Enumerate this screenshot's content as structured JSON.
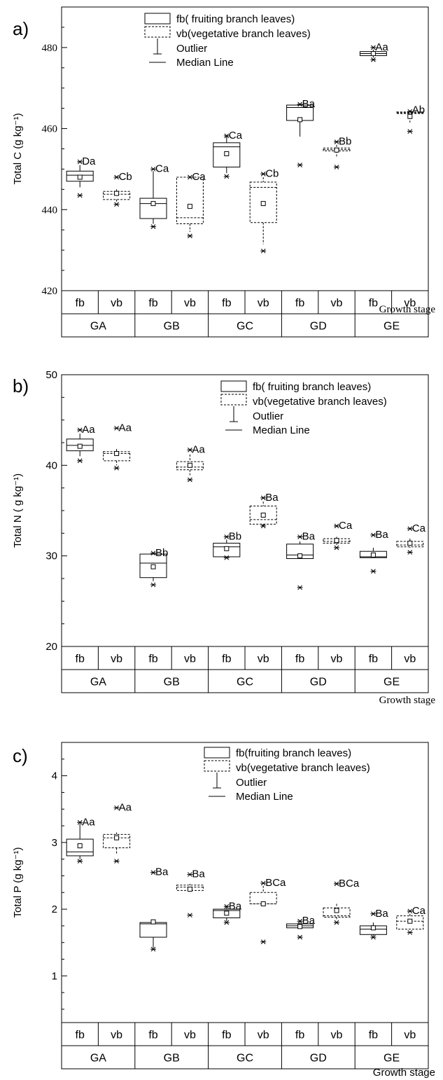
{
  "chart_data": [
    {
      "panel_label": "a)",
      "type": "box",
      "ylabel": "Total C (g kg⁻¹)",
      "ylim": [
        420,
        490
      ],
      "yticks": [
        420,
        440,
        460,
        480
      ],
      "xlabel": "Growth stage",
      "stages": [
        "GA",
        "GB",
        "GC",
        "GD",
        "GE"
      ],
      "leaf_types": [
        "fb",
        "vb"
      ],
      "legend": {
        "fb": "fb( fruiting branch leaves)",
        "vb": "vb(vegetative branch leaves)",
        "outlier": "Outlier",
        "median": "Median Line"
      },
      "boxes": [
        {
          "stage": "GA",
          "type": "fb",
          "whisker_low": 445.5,
          "q1": 447.0,
          "median": 448.5,
          "q3": 449.5,
          "whisker_high": 451.0,
          "mean": 448.0,
          "outliers": [
            443.5,
            451.8
          ],
          "label": "Da"
        },
        {
          "stage": "GA",
          "type": "vb",
          "whisker_low": 442.0,
          "q1": 442.5,
          "median": 443.8,
          "q3": 444.5,
          "whisker_high": 445.0,
          "mean": 444.0,
          "outliers": [
            441.3,
            448.0
          ],
          "label": "Cb"
        },
        {
          "stage": "GB",
          "type": "fb",
          "whisker_low": 436.5,
          "q1": 437.8,
          "median": 441.5,
          "q3": 442.8,
          "whisker_high": 449.5,
          "mean": 441.5,
          "outliers": [
            435.8,
            450.0
          ],
          "label": "Ca"
        },
        {
          "stage": "GB",
          "type": "vb",
          "whisker_low": 434.5,
          "q1": 436.5,
          "median": 438.0,
          "q3": 448.0,
          "whisker_high": 448.0,
          "mean": 440.8,
          "outliers": [
            433.5,
            448.0
          ],
          "label": "Ca"
        },
        {
          "stage": "GC",
          "type": "fb",
          "whisker_low": 449.0,
          "q1": 450.5,
          "median": 455.5,
          "q3": 456.5,
          "whisker_high": 458.0,
          "mean": 453.8,
          "outliers": [
            448.2,
            458.2
          ],
          "label": "Ca"
        },
        {
          "stage": "GC",
          "type": "vb",
          "whisker_low": 431.5,
          "q1": 436.8,
          "median": 445.5,
          "q3": 446.8,
          "whisker_high": 448.0,
          "mean": 441.5,
          "outliers": [
            429.8,
            448.8
          ],
          "label": "Cb"
        },
        {
          "stage": "GD",
          "type": "fb",
          "whisker_low": 458.0,
          "q1": 462.0,
          "median": 465.2,
          "q3": 465.8,
          "whisker_high": 466.0,
          "mean": 462.2,
          "outliers": [
            451.0,
            466.0
          ],
          "label": "Ba"
        },
        {
          "stage": "GD",
          "type": "vb",
          "whisker_low": 453.0,
          "q1": 454.5,
          "median": 454.8,
          "q3": 455.2,
          "whisker_high": 456.0,
          "mean": 454.7,
          "outliers": [
            450.5,
            456.7
          ],
          "label": "Bb"
        },
        {
          "stage": "GE",
          "type": "fb",
          "whisker_low": 477.5,
          "q1": 478.0,
          "median": 478.5,
          "q3": 479.0,
          "whisker_high": 479.5,
          "mean": 478.5,
          "outliers": [
            477.0,
            480.0
          ],
          "label": "Aa"
        },
        {
          "stage": "GE",
          "type": "vb",
          "whisker_low": 461.5,
          "q1": 463.7,
          "median": 463.9,
          "q3": 464.1,
          "whisker_high": 464.5,
          "mean": 463.0,
          "outliers": [
            459.3,
            464.2
          ],
          "label": "Ab"
        }
      ]
    },
    {
      "panel_label": "b)",
      "type": "box",
      "ylabel": "Total N ( g kg⁻¹)",
      "ylim": [
        20,
        50
      ],
      "yticks": [
        20,
        30,
        40,
        50
      ],
      "xlabel": "Growth stage",
      "stages": [
        "GA",
        "GB",
        "GC",
        "GD",
        "GE"
      ],
      "leaf_types": [
        "fb",
        "vb"
      ],
      "legend": {
        "fb": "fb( fruiting branch leaves)",
        "vb": "vb(vegetative branch leaves)",
        "outlier": "Outlier",
        "median": "Median Line"
      },
      "boxes": [
        {
          "stage": "GA",
          "type": "fb",
          "whisker_low": 41.0,
          "q1": 41.6,
          "median": 42.2,
          "q3": 42.9,
          "whisker_high": 43.5,
          "mean": 42.1,
          "outliers": [
            40.5,
            43.9
          ],
          "label": "Aa"
        },
        {
          "stage": "GA",
          "type": "vb",
          "whisker_low": 40.0,
          "q1": 40.5,
          "median": 41.3,
          "q3": 41.5,
          "whisker_high": 41.8,
          "mean": 41.3,
          "outliers": [
            39.7,
            44.1
          ],
          "label": "Aa"
        },
        {
          "stage": "GB",
          "type": "fb",
          "whisker_low": 27.2,
          "q1": 27.6,
          "median": 29.2,
          "q3": 30.2,
          "whisker_high": 30.2,
          "mean": 28.8,
          "outliers": [
            26.8,
            30.3
          ],
          "label": "Bb"
        },
        {
          "stage": "GB",
          "type": "vb",
          "whisker_low": 38.9,
          "q1": 39.5,
          "median": 39.8,
          "q3": 40.4,
          "whisker_high": 41.2,
          "mean": 40.0,
          "outliers": [
            38.4,
            41.7
          ],
          "label": "Aa"
        },
        {
          "stage": "GC",
          "type": "fb",
          "whisker_low": 29.9,
          "q1": 29.9,
          "median": 31.0,
          "q3": 31.4,
          "whisker_high": 31.8,
          "mean": 30.8,
          "outliers": [
            29.8,
            32.1
          ],
          "label": "Bb"
        },
        {
          "stage": "GC",
          "type": "vb",
          "whisker_low": 33.3,
          "q1": 33.5,
          "median": 34.0,
          "q3": 35.5,
          "whisker_high": 36.0,
          "mean": 34.5,
          "outliers": [
            33.3,
            36.4
          ],
          "label": "Ba"
        },
        {
          "stage": "GD",
          "type": "fb",
          "whisker_low": 29.7,
          "q1": 29.7,
          "median": 30.1,
          "q3": 31.3,
          "whisker_high": 31.6,
          "mean": 30.0,
          "outliers": [
            26.5,
            32.1
          ],
          "label": "Ba"
        },
        {
          "stage": "GD",
          "type": "vb",
          "whisker_low": 31.2,
          "q1": 31.4,
          "median": 31.6,
          "q3": 31.9,
          "whisker_high": 32.1,
          "mean": 31.7,
          "outliers": [
            30.9,
            33.3
          ],
          "label": "Ca"
        },
        {
          "stage": "GE",
          "type": "fb",
          "whisker_low": 29.8,
          "q1": 29.8,
          "median": 29.9,
          "q3": 30.5,
          "whisker_high": 30.9,
          "mean": 30.1,
          "outliers": [
            28.3,
            32.3
          ],
          "label": "Ba"
        },
        {
          "stage": "GE",
          "type": "vb",
          "whisker_low": 30.9,
          "q1": 31.0,
          "median": 31.2,
          "q3": 31.6,
          "whisker_high": 31.9,
          "mean": 31.4,
          "outliers": [
            30.4,
            33.0
          ],
          "label": "Ca"
        }
      ]
    },
    {
      "panel_label": "c)",
      "type": "box",
      "ylabel": "Total P (g kg⁻¹)",
      "ylim": [
        0.3,
        4.5
      ],
      "yticks": [
        1,
        2,
        3,
        4
      ],
      "xlabel": "Growth stage",
      "stages": [
        "GA",
        "GB",
        "GC",
        "GD",
        "GE"
      ],
      "leaf_types": [
        "fb",
        "vb"
      ],
      "legend": {
        "fb": "fb(fruiting branch leaves)",
        "vb": "vb(vegetative branch leaves)",
        "outlier": "Outlier",
        "median": "Median Line"
      },
      "boxes": [
        {
          "stage": "GA",
          "type": "fb",
          "whisker_low": 2.75,
          "q1": 2.8,
          "median": 2.86,
          "q3": 3.05,
          "whisker_high": 3.28,
          "mean": 2.95,
          "outliers": [
            2.72,
            3.3
          ],
          "label": "Aa"
        },
        {
          "stage": "GA",
          "type": "vb",
          "whisker_low": 2.82,
          "q1": 2.92,
          "median": 3.07,
          "q3": 3.12,
          "whisker_high": 3.15,
          "mean": 3.07,
          "outliers": [
            2.72,
            3.52
          ],
          "label": "Aa"
        },
        {
          "stage": "GB",
          "type": "fb",
          "whisker_low": 1.42,
          "q1": 1.58,
          "median": 1.78,
          "q3": 1.8,
          "whisker_high": 1.82,
          "mean": 1.81,
          "outliers": [
            1.4,
            2.55
          ],
          "label": "Ba"
        },
        {
          "stage": "GB",
          "type": "vb",
          "whisker_low": 2.28,
          "q1": 2.28,
          "median": 2.33,
          "q3": 2.36,
          "whisker_high": 2.38,
          "mean": 2.3,
          "outliers": [
            1.91,
            2.52
          ],
          "label": "Ba"
        },
        {
          "stage": "GC",
          "type": "fb",
          "whisker_low": 1.82,
          "q1": 1.87,
          "median": 1.98,
          "q3": 2.0,
          "whisker_high": 2.03,
          "mean": 1.94,
          "outliers": [
            1.8,
            2.04
          ],
          "label": "Ba"
        },
        {
          "stage": "GC",
          "type": "vb",
          "whisker_low": 2.06,
          "q1": 2.08,
          "median": 2.08,
          "q3": 2.25,
          "whisker_high": 2.35,
          "mean": 2.08,
          "outliers": [
            1.51,
            2.39
          ],
          "label": "BCa"
        },
        {
          "stage": "GD",
          "type": "fb",
          "whisker_low": 1.72,
          "q1": 1.72,
          "median": 1.75,
          "q3": 1.78,
          "whisker_high": 1.8,
          "mean": 1.74,
          "outliers": [
            1.58,
            1.82
          ],
          "label": "Ba"
        },
        {
          "stage": "GD",
          "type": "vb",
          "whisker_low": 1.85,
          "q1": 1.88,
          "median": 1.9,
          "q3": 2.02,
          "whisker_high": 2.08,
          "mean": 1.98,
          "outliers": [
            1.8,
            2.38
          ],
          "label": "BCa"
        },
        {
          "stage": "GE",
          "type": "fb",
          "whisker_low": 1.6,
          "q1": 1.62,
          "median": 1.7,
          "q3": 1.75,
          "whisker_high": 1.8,
          "mean": 1.72,
          "outliers": [
            1.58,
            1.93
          ],
          "label": "Ba"
        },
        {
          "stage": "GE",
          "type": "vb",
          "whisker_low": 1.7,
          "q1": 1.7,
          "median": 1.82,
          "q3": 1.9,
          "whisker_high": 1.93,
          "mean": 1.82,
          "outliers": [
            1.65,
            1.97
          ],
          "label": "Ca"
        }
      ]
    }
  ]
}
